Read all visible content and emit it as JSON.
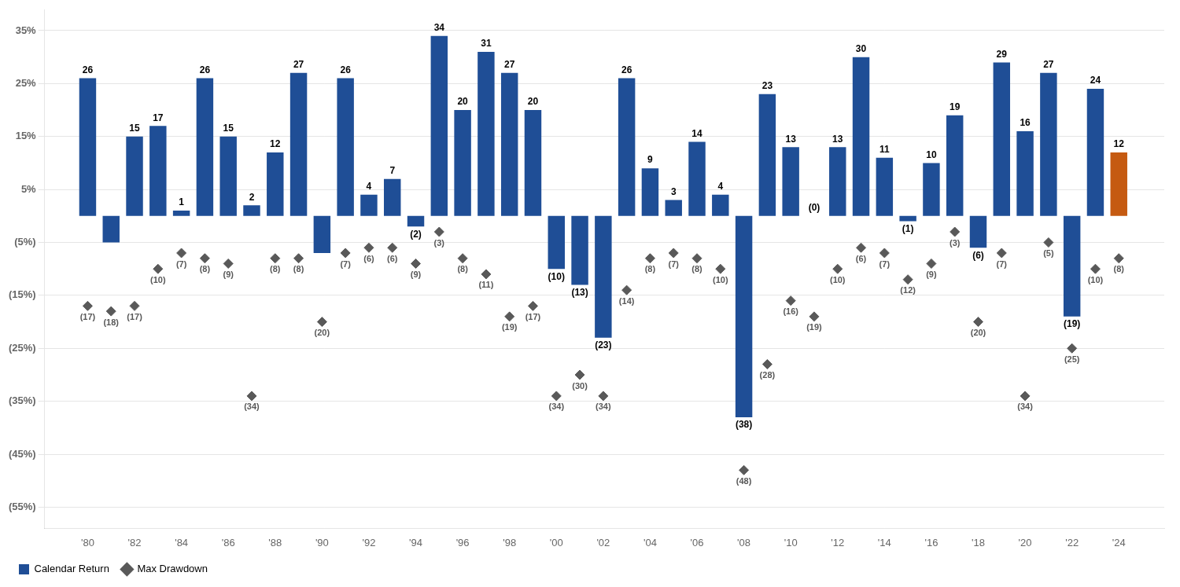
{
  "chart_data": {
    "type": "bar",
    "x": [
      1980,
      1981,
      1982,
      1983,
      1984,
      1985,
      1986,
      1987,
      1988,
      1989,
      1990,
      1991,
      1992,
      1993,
      1994,
      1995,
      1996,
      1997,
      1998,
      1999,
      2000,
      2001,
      2002,
      2003,
      2004,
      2005,
      2006,
      2007,
      2008,
      2009,
      2010,
      2011,
      2012,
      2013,
      2014,
      2015,
      2016,
      2017,
      2018,
      2019,
      2020,
      2021,
      2022,
      2023,
      2024
    ],
    "xlim": [
      1979.2,
      2024.9
    ],
    "xticks": [
      {
        "value": 1980,
        "label": "'80"
      },
      {
        "value": 1982,
        "label": "'82"
      },
      {
        "value": 1984,
        "label": "'84"
      },
      {
        "value": 1986,
        "label": "'86"
      },
      {
        "value": 1988,
        "label": "'88"
      },
      {
        "value": 1990,
        "label": "'90"
      },
      {
        "value": 1992,
        "label": "'92"
      },
      {
        "value": 1994,
        "label": "'94"
      },
      {
        "value": 1996,
        "label": "'96"
      },
      {
        "value": 1998,
        "label": "'98"
      },
      {
        "value": 2000,
        "label": "'00"
      },
      {
        "value": 2002,
        "label": "'02"
      },
      {
        "value": 2004,
        "label": "'04"
      },
      {
        "value": 2006,
        "label": "'06"
      },
      {
        "value": 2008,
        "label": "'08"
      },
      {
        "value": 2010,
        "label": "'10"
      },
      {
        "value": 2012,
        "label": "'12"
      },
      {
        "value": 2014,
        "label": "'14"
      },
      {
        "value": 2016,
        "label": "'16"
      },
      {
        "value": 2018,
        "label": "'18"
      },
      {
        "value": 2020,
        "label": "'20"
      },
      {
        "value": 2022,
        "label": "'22"
      },
      {
        "value": 2024,
        "label": "'24"
      }
    ],
    "ylim": [
      -59,
      39
    ],
    "yticks": [
      {
        "value": -55,
        "label": "(55%)"
      },
      {
        "value": -45,
        "label": "(45%)"
      },
      {
        "value": -35,
        "label": "(35%)"
      },
      {
        "value": -25,
        "label": "(25%)"
      },
      {
        "value": -15,
        "label": "(15%)"
      },
      {
        "value": -5,
        "label": "(5%)"
      },
      {
        "value": 5,
        "label": "5%"
      },
      {
        "value": 15,
        "label": "15%"
      },
      {
        "value": 25,
        "label": "25%"
      },
      {
        "value": 35,
        "label": "35%"
      }
    ],
    "grid": true,
    "legend": "lower left",
    "data_labels": true,
    "series": [
      {
        "name": "Calendar Return",
        "type": "bar",
        "color": "#1F4E96",
        "colors": [
          "#1F4E96",
          "#1F4E96",
          "#1F4E96",
          "#1F4E96",
          "#1F4E96",
          "#1F4E96",
          "#1F4E96",
          "#1F4E96",
          "#1F4E96",
          "#1F4E96",
          "#1F4E96",
          "#1F4E96",
          "#1F4E96",
          "#1F4E96",
          "#1F4E96",
          "#1F4E96",
          "#1F4E96",
          "#1F4E96",
          "#1F4E96",
          "#1F4E96",
          "#1F4E96",
          "#1F4E96",
          "#1F4E96",
          "#1F4E96",
          "#1F4E96",
          "#1F4E96",
          "#1F4E96",
          "#1F4E96",
          "#1F4E96",
          "#1F4E96",
          "#1F4E96",
          "#1F4E96",
          "#1F4E96",
          "#1F4E96",
          "#1F4E96",
          "#1F4E96",
          "#1F4E96",
          "#1F4E96",
          "#1F4E96",
          "#1F4E96",
          "#1F4E96",
          "#1F4E96",
          "#1F4E96",
          "#1F4E96",
          "#C55A11"
        ],
        "values": [
          26,
          -5,
          15,
          17,
          1,
          26,
          15,
          2,
          12,
          27,
          -7,
          26,
          4,
          7,
          -2,
          34,
          20,
          31,
          27,
          20,
          -10,
          -13,
          -23,
          26,
          9,
          3,
          14,
          4,
          -38,
          23,
          13,
          0,
          13,
          30,
          11,
          -1,
          10,
          19,
          -6,
          29,
          16,
          27,
          -19,
          24,
          12
        ],
        "value_labels": [
          "26",
          null,
          "15",
          "17",
          "1",
          "26",
          "15",
          "2",
          "12",
          "27",
          null,
          "26",
          "4",
          "7",
          "(2)",
          "34",
          "20",
          "31",
          "27",
          "20",
          "(10)",
          "(13)",
          "(23)",
          "26",
          "9",
          "3",
          "14",
          "4",
          "(38)",
          "23",
          "13",
          "(0)",
          "13",
          "30",
          "11",
          "(1)",
          "10",
          "19",
          "(6)",
          "29",
          "16",
          "27",
          "(19)",
          "24",
          "12"
        ]
      },
      {
        "name": "Max Drawdown",
        "type": "scatter",
        "marker": "diamond",
        "color": "#595959",
        "values": [
          -17,
          -18,
          -17,
          -10,
          -7,
          -8,
          -9,
          -34,
          -8,
          -8,
          -20,
          -7,
          -6,
          -6,
          -9,
          -3,
          -8,
          -11,
          -19,
          -17,
          -34,
          -30,
          -34,
          -14,
          -8,
          -7,
          -8,
          -10,
          -48,
          -28,
          -16,
          -19,
          -10,
          -6,
          -7,
          -12,
          -9,
          -3,
          -20,
          -7,
          -34,
          -5,
          -25,
          -10,
          -8
        ],
        "value_labels": [
          "(17)",
          "(18)",
          "(17)",
          "(10)",
          "(7)",
          "(8)",
          "(9)",
          "(34)",
          "(8)",
          "(8)",
          "(20)",
          "(7)",
          "(6)",
          "(6)",
          "(9)",
          "(3)",
          "(8)",
          "(11)",
          "(19)",
          "(17)",
          "(34)",
          "(30)",
          "(34)",
          "(14)",
          "(8)",
          "(7)",
          "(8)",
          "(10)",
          "(48)",
          "(28)",
          "(16)",
          "(19)",
          "(10)",
          "(6)",
          "(7)",
          "(12)",
          "(9)",
          "(3)",
          "(20)",
          "(7)",
          "(34)",
          "(5)",
          "(25)",
          "(10)",
          "(8)"
        ]
      }
    ]
  }
}
